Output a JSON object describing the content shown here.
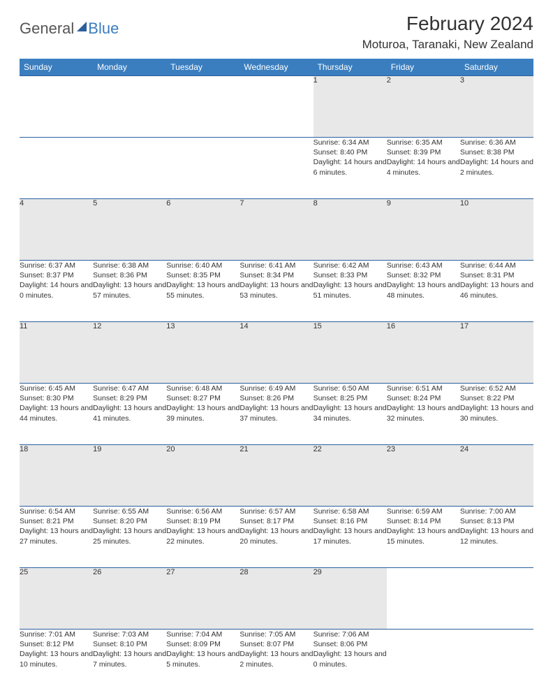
{
  "logo": {
    "text1": "General",
    "text2": "Blue"
  },
  "header": {
    "month": "February 2024",
    "location": "Moturoa, Taranaki, New Zealand"
  },
  "colors": {
    "header_bg": "#3a7ebf",
    "header_fg": "#ffffff",
    "daynum_bg": "#e8e8e8",
    "border": "#2b5f9e",
    "text": "#333333",
    "page_bg": "#ffffff"
  },
  "weekdays": [
    "Sunday",
    "Monday",
    "Tuesday",
    "Wednesday",
    "Thursday",
    "Friday",
    "Saturday"
  ],
  "weeks": [
    [
      null,
      null,
      null,
      null,
      {
        "n": "1",
        "sr": "6:34 AM",
        "ss": "8:40 PM",
        "dl": "14 hours and 6 minutes."
      },
      {
        "n": "2",
        "sr": "6:35 AM",
        "ss": "8:39 PM",
        "dl": "14 hours and 4 minutes."
      },
      {
        "n": "3",
        "sr": "6:36 AM",
        "ss": "8:38 PM",
        "dl": "14 hours and 2 minutes."
      }
    ],
    [
      {
        "n": "4",
        "sr": "6:37 AM",
        "ss": "8:37 PM",
        "dl": "14 hours and 0 minutes."
      },
      {
        "n": "5",
        "sr": "6:38 AM",
        "ss": "8:36 PM",
        "dl": "13 hours and 57 minutes."
      },
      {
        "n": "6",
        "sr": "6:40 AM",
        "ss": "8:35 PM",
        "dl": "13 hours and 55 minutes."
      },
      {
        "n": "7",
        "sr": "6:41 AM",
        "ss": "8:34 PM",
        "dl": "13 hours and 53 minutes."
      },
      {
        "n": "8",
        "sr": "6:42 AM",
        "ss": "8:33 PM",
        "dl": "13 hours and 51 minutes."
      },
      {
        "n": "9",
        "sr": "6:43 AM",
        "ss": "8:32 PM",
        "dl": "13 hours and 48 minutes."
      },
      {
        "n": "10",
        "sr": "6:44 AM",
        "ss": "8:31 PM",
        "dl": "13 hours and 46 minutes."
      }
    ],
    [
      {
        "n": "11",
        "sr": "6:45 AM",
        "ss": "8:30 PM",
        "dl": "13 hours and 44 minutes."
      },
      {
        "n": "12",
        "sr": "6:47 AM",
        "ss": "8:29 PM",
        "dl": "13 hours and 41 minutes."
      },
      {
        "n": "13",
        "sr": "6:48 AM",
        "ss": "8:27 PM",
        "dl": "13 hours and 39 minutes."
      },
      {
        "n": "14",
        "sr": "6:49 AM",
        "ss": "8:26 PM",
        "dl": "13 hours and 37 minutes."
      },
      {
        "n": "15",
        "sr": "6:50 AM",
        "ss": "8:25 PM",
        "dl": "13 hours and 34 minutes."
      },
      {
        "n": "16",
        "sr": "6:51 AM",
        "ss": "8:24 PM",
        "dl": "13 hours and 32 minutes."
      },
      {
        "n": "17",
        "sr": "6:52 AM",
        "ss": "8:22 PM",
        "dl": "13 hours and 30 minutes."
      }
    ],
    [
      {
        "n": "18",
        "sr": "6:54 AM",
        "ss": "8:21 PM",
        "dl": "13 hours and 27 minutes."
      },
      {
        "n": "19",
        "sr": "6:55 AM",
        "ss": "8:20 PM",
        "dl": "13 hours and 25 minutes."
      },
      {
        "n": "20",
        "sr": "6:56 AM",
        "ss": "8:19 PM",
        "dl": "13 hours and 22 minutes."
      },
      {
        "n": "21",
        "sr": "6:57 AM",
        "ss": "8:17 PM",
        "dl": "13 hours and 20 minutes."
      },
      {
        "n": "22",
        "sr": "6:58 AM",
        "ss": "8:16 PM",
        "dl": "13 hours and 17 minutes."
      },
      {
        "n": "23",
        "sr": "6:59 AM",
        "ss": "8:14 PM",
        "dl": "13 hours and 15 minutes."
      },
      {
        "n": "24",
        "sr": "7:00 AM",
        "ss": "8:13 PM",
        "dl": "13 hours and 12 minutes."
      }
    ],
    [
      {
        "n": "25",
        "sr": "7:01 AM",
        "ss": "8:12 PM",
        "dl": "13 hours and 10 minutes."
      },
      {
        "n": "26",
        "sr": "7:03 AM",
        "ss": "8:10 PM",
        "dl": "13 hours and 7 minutes."
      },
      {
        "n": "27",
        "sr": "7:04 AM",
        "ss": "8:09 PM",
        "dl": "13 hours and 5 minutes."
      },
      {
        "n": "28",
        "sr": "7:05 AM",
        "ss": "8:07 PM",
        "dl": "13 hours and 2 minutes."
      },
      {
        "n": "29",
        "sr": "7:06 AM",
        "ss": "8:06 PM",
        "dl": "13 hours and 0 minutes."
      },
      null,
      null
    ]
  ],
  "labels": {
    "sunrise": "Sunrise: ",
    "sunset": "Sunset: ",
    "daylight": "Daylight: "
  }
}
